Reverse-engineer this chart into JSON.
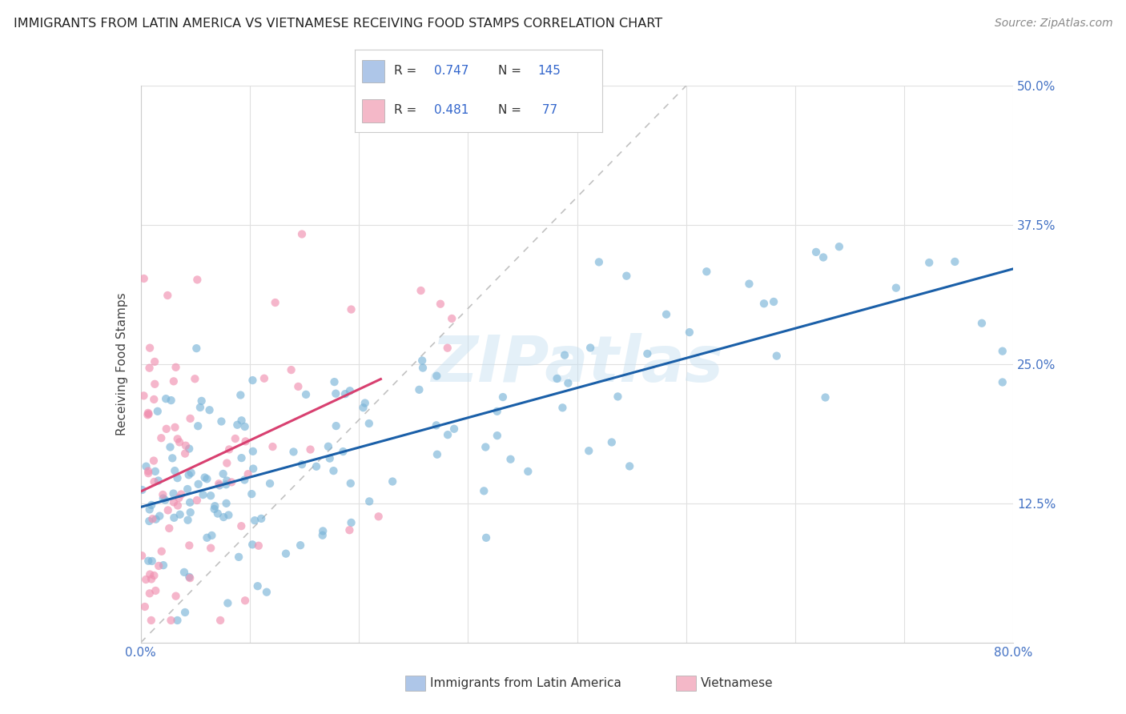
{
  "title": "IMMIGRANTS FROM LATIN AMERICA VS VIETNAMESE RECEIVING FOOD STAMPS CORRELATION CHART",
  "source": "Source: ZipAtlas.com",
  "ylabel": "Receiving Food Stamps",
  "xlim": [
    0.0,
    0.8
  ],
  "ylim": [
    0.0,
    0.5
  ],
  "x_ticks": [
    0.0,
    0.1,
    0.2,
    0.3,
    0.4,
    0.5,
    0.6,
    0.7,
    0.8
  ],
  "y_ticks": [
    0.0,
    0.125,
    0.25,
    0.375,
    0.5
  ],
  "y_right_labels": [
    "",
    "12.5%",
    "25.0%",
    "37.5%",
    "50.0%"
  ],
  "legend_entries": [
    {
      "label": "Immigrants from Latin America",
      "color": "#aec6e8",
      "R": 0.747,
      "N": 145
    },
    {
      "label": "Vietnamese",
      "color": "#f4b8c8",
      "R": 0.481,
      "N": 77
    }
  ],
  "blue_scatter_color": "#7ab4d8",
  "pink_scatter_color": "#f090b0",
  "blue_line_color": "#1a5fa8",
  "pink_line_color": "#d84070",
  "ref_line_color": "#bbbbbb",
  "watermark": "ZIPatlas",
  "background_color": "#ffffff",
  "grid_color": "#e0e0e0",
  "right_axis_color": "#4472c4",
  "title_color": "#222222",
  "source_color": "#888888"
}
